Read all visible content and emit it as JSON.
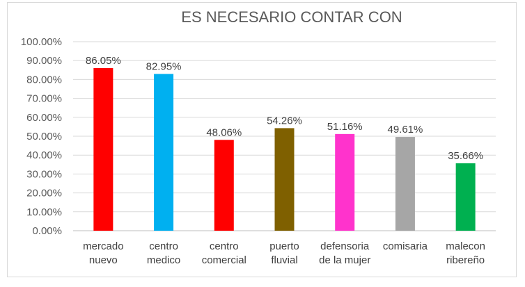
{
  "chart_data": {
    "type": "bar",
    "title": "ES NECESARIO CONTAR CON",
    "categories": [
      [
        "mercado",
        "nuevo"
      ],
      [
        "centro",
        "medico"
      ],
      [
        "centro",
        "comercial"
      ],
      [
        "puerto",
        "fluvial"
      ],
      [
        "defensoria",
        "de la mujer"
      ],
      [
        "comisaria"
      ],
      [
        "malecon",
        "ribereño"
      ]
    ],
    "values": [
      86.05,
      82.95,
      48.06,
      54.26,
      51.16,
      49.61,
      35.66
    ],
    "data_labels": [
      "86.05%",
      "82.95%",
      "48.06%",
      "54.26%",
      "51.16%",
      "49.61%",
      "35.66%"
    ],
    "colors": [
      "#ff0000",
      "#00b0f0",
      "#ff0000",
      "#7f6000",
      "#ff33cc",
      "#a6a6a6",
      "#00b050"
    ],
    "y_ticks": [
      "0.00%",
      "10.00%",
      "20.00%",
      "30.00%",
      "40.00%",
      "50.00%",
      "60.00%",
      "70.00%",
      "80.00%",
      "90.00%",
      "100.00%"
    ],
    "ylim": [
      0,
      100
    ],
    "xlabel": "",
    "ylabel": "",
    "grid": true,
    "legend": "none"
  }
}
